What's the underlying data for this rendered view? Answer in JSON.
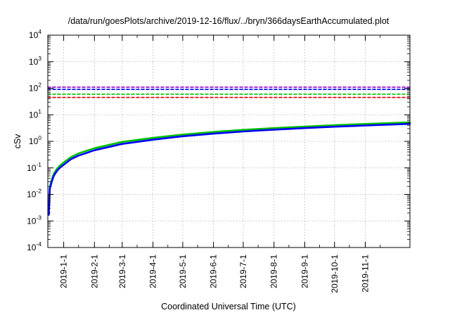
{
  "chart_data": {
    "type": "line",
    "title": "/data/run/goesPlots/archive/2019-12-16/flux/../bryn/366daysEarthAccumulated.plot",
    "xlabel": "Coordinated Universal Time (UTC)",
    "ylabel": "cSv",
    "x_tick_labels": [
      "2019-1-1",
      "2019-2-1",
      "2019-3-1",
      "2019-4-1",
      "2019-5-1",
      "2019-6-1",
      "2019-7-1",
      "2019-8-1",
      "2019-9-1",
      "2019-10-1",
      "2019-11-1"
    ],
    "xlim": [
      "2018-12-16",
      "2019-12-16"
    ],
    "ylim": [
      0.0001,
      10000
    ],
    "y_scale": "log",
    "y_tick_labels": [
      {
        "base": "10",
        "exp": "-4",
        "value": 0.0001
      },
      {
        "base": "10",
        "exp": "-3",
        "value": 0.001
      },
      {
        "base": "10",
        "exp": "-2",
        "value": 0.01
      },
      {
        "base": "10",
        "exp": "-1",
        "value": 0.1
      },
      {
        "base": "10",
        "exp": "0",
        "value": 1
      },
      {
        "base": "10",
        "exp": "1",
        "value": 10
      },
      {
        "base": "10",
        "exp": "2",
        "value": 100
      },
      {
        "base": "10",
        "exp": "3",
        "value": 1000
      },
      {
        "base": "10",
        "exp": "4",
        "value": 10000
      }
    ],
    "grid": true,
    "legend": "none",
    "series": [
      {
        "color": "#00c000",
        "style": "solid",
        "x": [
          "2018-12-17",
          "2018-12-18",
          "2018-12-20",
          "2018-12-22",
          "2018-12-25",
          "2018-12-28",
          "2019-01-01",
          "2019-01-08",
          "2019-01-16",
          "2019-02-01",
          "2019-03-01",
          "2019-04-01",
          "2019-05-01",
          "2019-06-01",
          "2019-07-01",
          "2019-08-01",
          "2019-09-01",
          "2019-10-01",
          "2019-11-01",
          "2019-12-01",
          "2019-12-16"
        ],
        "y": [
          0.002,
          0.019,
          0.036,
          0.06,
          0.09,
          0.12,
          0.16,
          0.25,
          0.35,
          0.55,
          0.95,
          1.35,
          1.8,
          2.25,
          2.7,
          3.15,
          3.6,
          4.05,
          4.5,
          4.95,
          5.2
        ]
      },
      {
        "color": "#0000ff",
        "style": "solid",
        "x": [
          "2018-12-17",
          "2018-12-18",
          "2018-12-20",
          "2018-12-22",
          "2018-12-25",
          "2018-12-28",
          "2019-01-01",
          "2019-01-08",
          "2019-01-16",
          "2019-02-01",
          "2019-03-01",
          "2019-04-01",
          "2019-05-01",
          "2019-06-01",
          "2019-07-01",
          "2019-08-01",
          "2019-09-01",
          "2019-10-01",
          "2019-11-01",
          "2019-12-01",
          "2019-12-16"
        ],
        "y": [
          0.0017,
          0.016,
          0.03,
          0.05,
          0.075,
          0.1,
          0.13,
          0.21,
          0.29,
          0.46,
          0.8,
          1.15,
          1.55,
          1.95,
          2.35,
          2.75,
          3.15,
          3.55,
          3.95,
          4.35,
          4.55
        ]
      },
      {
        "color": "#9400d3",
        "style": "dashed",
        "x": [
          "2018-12-16",
          "2019-12-16"
        ],
        "y": [
          110,
          110
        ]
      },
      {
        "color": "#0000ff",
        "style": "dashed",
        "x": [
          "2018-12-16",
          "2019-12-16"
        ],
        "y": [
          90,
          90
        ]
      },
      {
        "color": "#00c000",
        "style": "dashed",
        "x": [
          "2018-12-16",
          "2019-12-16"
        ],
        "y": [
          60,
          60
        ]
      },
      {
        "color": "#e00000",
        "style": "dashed",
        "x": [
          "2018-12-16",
          "2019-12-16"
        ],
        "y": [
          45,
          45
        ]
      }
    ]
  }
}
